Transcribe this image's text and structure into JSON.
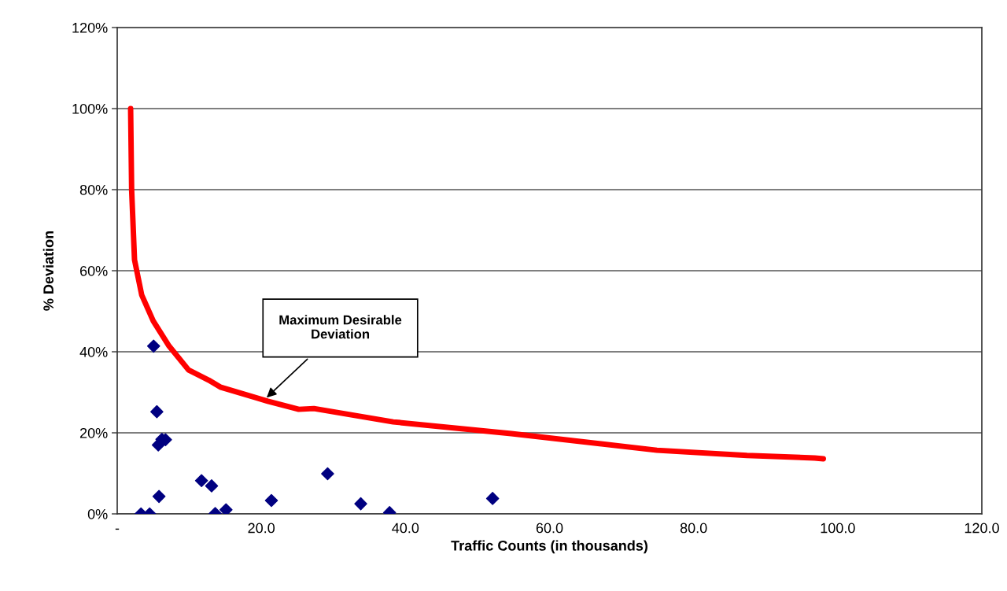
{
  "chart_data": {
    "type": "scatter",
    "xlabel": "Traffic Counts (in thousands)",
    "ylabel": "% Deviation",
    "xlim": [
      0,
      120
    ],
    "xticks": [
      {
        "value": 0,
        "label": "-"
      },
      {
        "value": 20,
        "label": "20.0"
      },
      {
        "value": 40,
        "label": "40.0"
      },
      {
        "value": 60,
        "label": "60.0"
      },
      {
        "value": 80,
        "label": "80.0"
      },
      {
        "value": 100,
        "label": "100.0"
      },
      {
        "value": 120,
        "label": "120.0"
      }
    ],
    "ylim": [
      0,
      120
    ],
    "yticks": [
      {
        "value": 0,
        "label": "0%"
      },
      {
        "value": 20,
        "label": "20%"
      },
      {
        "value": 40,
        "label": "40%"
      },
      {
        "value": 60,
        "label": "60%"
      },
      {
        "value": 80,
        "label": "80%"
      },
      {
        "value": 100,
        "label": "100%"
      },
      {
        "value": 120,
        "label": "120%"
      }
    ],
    "grid": "y",
    "legend": false,
    "series": [
      {
        "color": "#000080",
        "marker": "diamond",
        "x": [
          5.05,
          5.5,
          6.2,
          6.7,
          5.7,
          5.8,
          3.3,
          4.5,
          11.7,
          13.1,
          13.6,
          15.1,
          21.4,
          29.2,
          33.8,
          37.8,
          52.1
        ],
        "values": [
          41.4,
          25.2,
          18.4,
          18.3,
          17.0,
          4.3,
          0,
          0,
          8.2,
          6.9,
          0.1,
          1.0,
          3.3,
          9.9,
          2.5,
          0.3,
          3.8
        ]
      },
      {
        "type": "line",
        "color": "#ff0000",
        "marker": "none",
        "line_style": "solid",
        "x": [
          1.86,
          2.0,
          2.4,
          3.4,
          5.0,
          7.2,
          9.9,
          12.7,
          14.3,
          20.9,
          25.2,
          27.3,
          38.3,
          54.7,
          74.9,
          87.4,
          96.8,
          98.0
        ],
        "values": [
          100,
          80,
          62.7,
          54,
          47.6,
          41.4,
          35.5,
          33,
          31.3,
          27.8,
          25.8,
          26.0,
          22.7,
          19.8,
          15.7,
          14.4,
          13.8,
          13.6
        ]
      }
    ],
    "annotations": [
      "Maximum Desirable\nDeviation"
    ]
  }
}
